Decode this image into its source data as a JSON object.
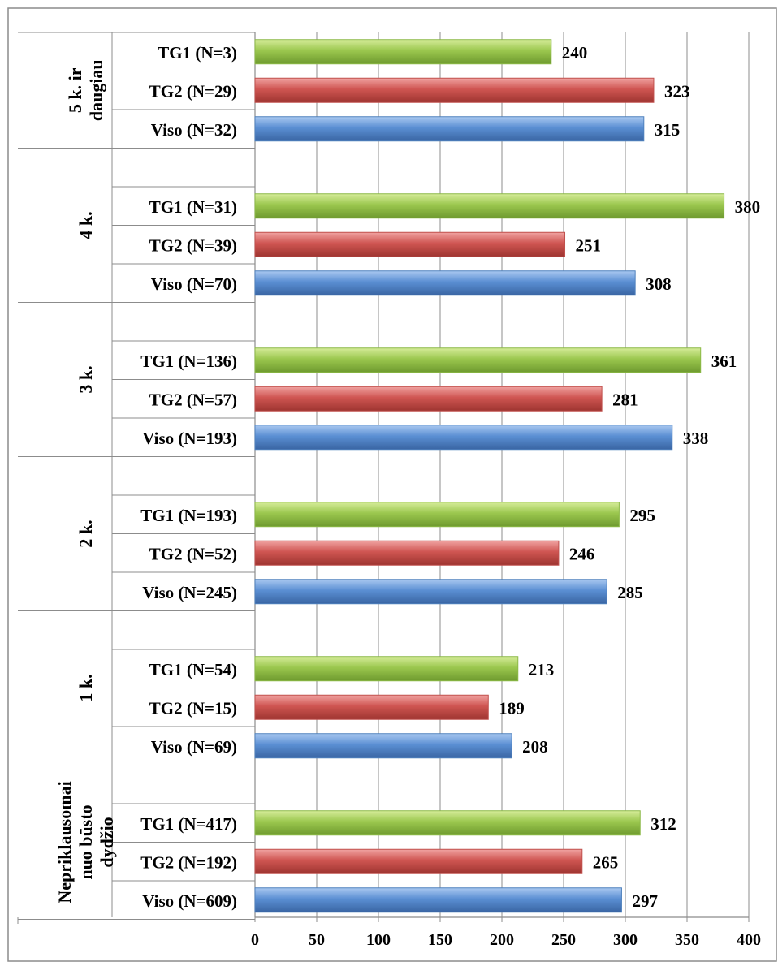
{
  "chart_data": {
    "type": "bar",
    "orientation": "horizontal",
    "xlim": [
      0,
      400
    ],
    "x_ticks": [
      "0",
      "50",
      "100",
      "150",
      "200",
      "250",
      "300",
      "350",
      "400"
    ],
    "grid": "vertical",
    "colors": {
      "TG1": "#8cb947",
      "TG2": "#c0504d",
      "Viso": "#4f81bd"
    },
    "groups": [
      {
        "label": [
          "5 k. ir",
          "daugiau"
        ],
        "bars": [
          {
            "label": "TG1 (N=3)",
            "series": "TG1",
            "value": 240
          },
          {
            "label": "TG2 (N=29)",
            "series": "TG2",
            "value": 323
          },
          {
            "label": "Viso (N=32)",
            "series": "Viso",
            "value": 315
          }
        ]
      },
      {
        "label": [
          "4 k."
        ],
        "bars": [
          {
            "label": "TG1 (N=31)",
            "series": "TG1",
            "value": 380
          },
          {
            "label": "TG2 (N=39)",
            "series": "TG2",
            "value": 251
          },
          {
            "label": "Viso (N=70)",
            "series": "Viso",
            "value": 308
          }
        ]
      },
      {
        "label": [
          "3 k."
        ],
        "bars": [
          {
            "label": "TG1 (N=136)",
            "series": "TG1",
            "value": 361
          },
          {
            "label": "TG2 (N=57)",
            "series": "TG2",
            "value": 281
          },
          {
            "label": "Viso (N=193)",
            "series": "Viso",
            "value": 338
          }
        ]
      },
      {
        "label": [
          "2 k."
        ],
        "bars": [
          {
            "label": "TG1 (N=193)",
            "series": "TG1",
            "value": 295
          },
          {
            "label": "TG2 (N=52)",
            "series": "TG2",
            "value": 246
          },
          {
            "label": "Viso (N=245)",
            "series": "Viso",
            "value": 285
          }
        ]
      },
      {
        "label": [
          "1 k."
        ],
        "bars": [
          {
            "label": "TG1 (N=54)",
            "series": "TG1",
            "value": 213
          },
          {
            "label": "TG2 (N=15)",
            "series": "TG2",
            "value": 189
          },
          {
            "label": "Viso (N=69)",
            "series": "Viso",
            "value": 208
          }
        ]
      },
      {
        "label": [
          "Nepriklausomai",
          "nuo būsto",
          "dydžio"
        ],
        "bars": [
          {
            "label": "TG1 (N=417)",
            "series": "TG1",
            "value": 312
          },
          {
            "label": "TG2 (N=192)",
            "series": "TG2",
            "value": 265
          },
          {
            "label": "Viso (N=609)",
            "series": "Viso",
            "value": 297
          }
        ]
      }
    ]
  }
}
